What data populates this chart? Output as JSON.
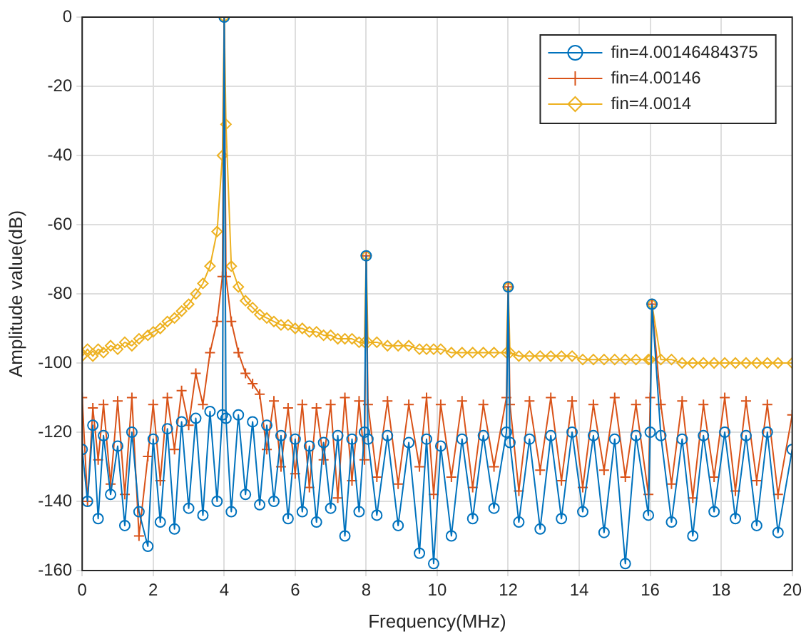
{
  "chart_data": {
    "type": "line",
    "xlabel": "Frequency(MHz)",
    "ylabel": "Amplitude value(dB)",
    "x": [
      0,
      0.15,
      0.3,
      0.45,
      0.6,
      0.8,
      1.0,
      1.2,
      1.4,
      1.6,
      1.85,
      2.0,
      2.2,
      2.4,
      2.6,
      2.8,
      3.0,
      3.2,
      3.4,
      3.6,
      3.8,
      3.95,
      4,
      4.05,
      4.2,
      4.4,
      4.6,
      4.8,
      5.0,
      5.2,
      5.4,
      5.6,
      5.8,
      6.0,
      6.2,
      6.4,
      6.6,
      6.8,
      7.0,
      7.2,
      7.4,
      7.6,
      7.8,
      7.95,
      8,
      8.05,
      8.3,
      8.6,
      8.9,
      9.2,
      9.5,
      9.7,
      9.9,
      10.1,
      10.4,
      10.7,
      11.0,
      11.3,
      11.6,
      11.95,
      12,
      12.05,
      12.3,
      12.6,
      12.9,
      13.2,
      13.5,
      13.8,
      14.1,
      14.4,
      14.7,
      15.0,
      15.3,
      15.6,
      15.95,
      16,
      16.05,
      16.3,
      16.6,
      16.9,
      17.2,
      17.5,
      17.8,
      18.1,
      18.4,
      18.7,
      19.0,
      19.3,
      19.6,
      20
    ],
    "series": [
      {
        "name": "fin=4.00146484375",
        "color": "#0072bd",
        "marker": "circle",
        "values": [
          -125,
          -140,
          -118,
          -145,
          -121,
          -138,
          -124,
          -147,
          -120,
          -143,
          -153,
          -122,
          -146,
          -119,
          -148,
          -117,
          -142,
          -116,
          -144,
          -114,
          -140,
          -115,
          0,
          -116,
          -143,
          -115,
          -138,
          -117,
          -141,
          -118,
          -140,
          -121,
          -145,
          -122,
          -143,
          -124,
          -146,
          -123,
          -142,
          -121,
          -150,
          -122,
          -143,
          -120,
          -69,
          -122,
          -144,
          -121,
          -147,
          -123,
          -155,
          -122,
          -158,
          -124,
          -150,
          -122,
          -145,
          -121,
          -142,
          -120,
          -78,
          -123,
          -146,
          -122,
          -148,
          -121,
          -145,
          -120,
          -143,
          -121,
          -149,
          -122,
          -158,
          -121,
          -144,
          -120,
          -83,
          -121,
          -146,
          -122,
          -150,
          -121,
          -143,
          -120,
          -145,
          -121,
          -147,
          -120,
          -149,
          -125
        ]
      },
      {
        "name": "fin=4.00146",
        "color": "#d95319",
        "marker": "cross",
        "values": [
          -110,
          -140,
          -113,
          -128,
          -112,
          -135,
          -111,
          -138,
          -110,
          -150,
          -127,
          -112,
          -134,
          -110,
          -125,
          -108,
          -118,
          -103,
          -112,
          -97,
          -88,
          -75,
          0,
          -75,
          -88,
          -97,
          -103,
          -106,
          -109,
          -125,
          -111,
          -130,
          -113,
          -132,
          -112,
          -136,
          -113,
          -128,
          -112,
          -139,
          -110,
          -134,
          -111,
          -128,
          -69,
          -112,
          -133,
          -111,
          -135,
          -112,
          -130,
          -110,
          -138,
          -112,
          -133,
          -111,
          -136,
          -112,
          -130,
          -110,
          -78,
          -112,
          -137,
          -111,
          -131,
          -110,
          -134,
          -111,
          -136,
          -112,
          -131,
          -110,
          -133,
          -112,
          -138,
          -110,
          -83,
          -112,
          -135,
          -111,
          -139,
          -112,
          -133,
          -110,
          -137,
          -111,
          -134,
          -112,
          -138,
          -115
        ]
      },
      {
        "name": "fin=4.0014",
        "color": "#edb120",
        "marker": "diamond",
        "values": [
          -98,
          -96,
          -98,
          -96,
          -97,
          -95,
          -96,
          -94,
          -95,
          -93,
          -92,
          -91,
          -90,
          -88,
          -87,
          -85,
          -83,
          -80,
          -77,
          -72,
          -62,
          -40,
          0,
          -31,
          -72,
          -78,
          -82,
          -84,
          -86,
          -87,
          -88,
          -89,
          -89,
          -90,
          -90,
          -91,
          -91,
          -92,
          -92,
          -93,
          -93,
          -93,
          -94,
          -94,
          -69,
          -94,
          -94,
          -95,
          -95,
          -95,
          -96,
          -96,
          -96,
          -96,
          -97,
          -97,
          -97,
          -97,
          -97,
          -97,
          -78,
          -97,
          -98,
          -98,
          -98,
          -98,
          -98,
          -98,
          -99,
          -99,
          -99,
          -99,
          -99,
          -99,
          -99,
          -99,
          -83,
          -99,
          -99,
          -100,
          -100,
          -100,
          -100,
          -100,
          -100,
          -100,
          -100,
          -100,
          -100,
          -100
        ]
      }
    ],
    "xlim": [
      0,
      20
    ],
    "xticks": [
      0,
      2,
      4,
      6,
      8,
      10,
      12,
      14,
      16,
      18,
      20
    ],
    "ylim": [
      -160,
      0
    ],
    "yticks": [
      -160,
      -140,
      -120,
      -100,
      -80,
      -60,
      -40,
      -20,
      0
    ],
    "grid": true,
    "legend": "top right",
    "line_style": "solid"
  }
}
